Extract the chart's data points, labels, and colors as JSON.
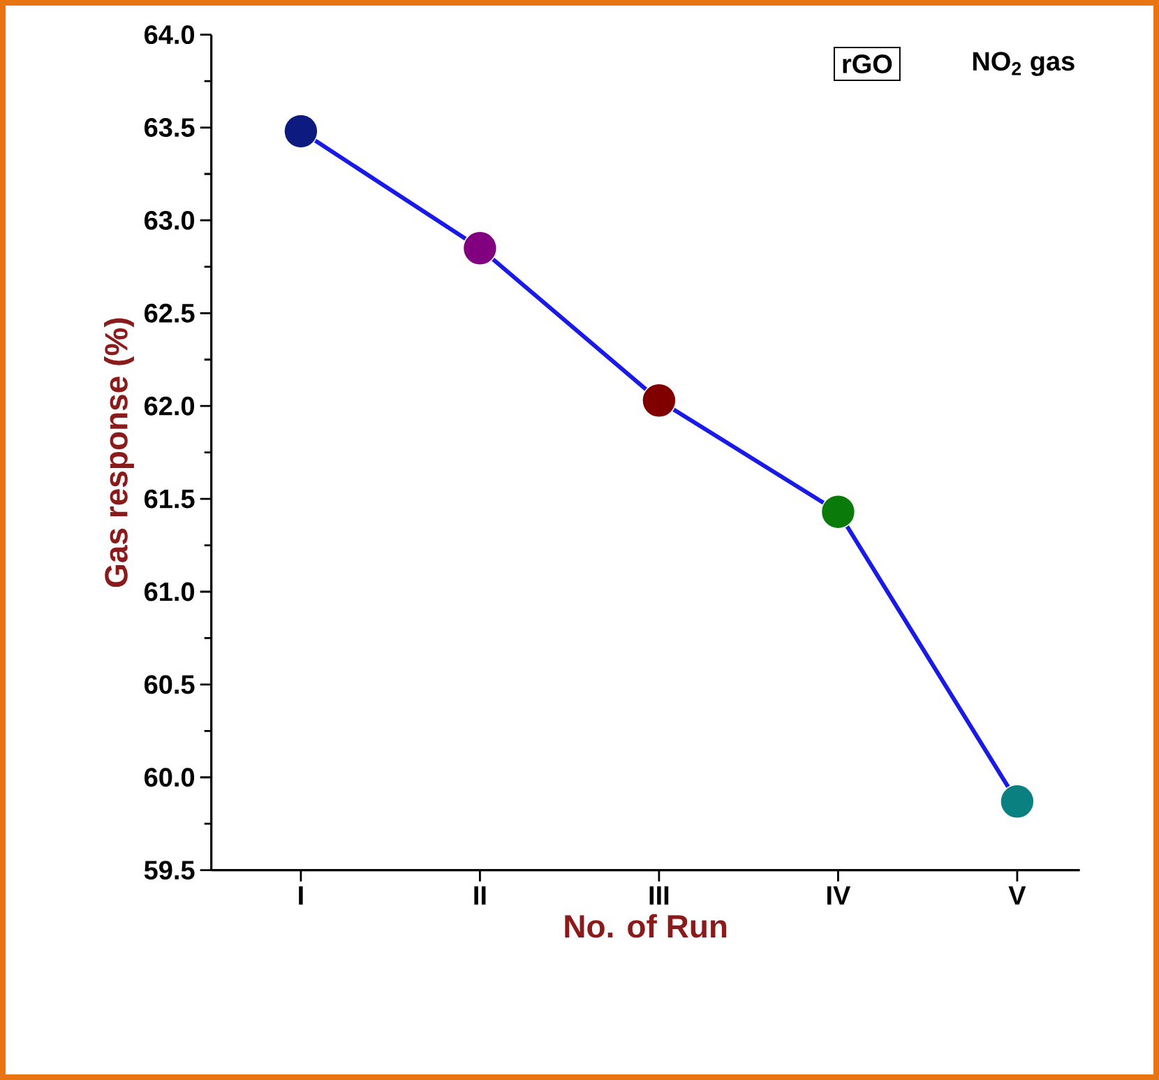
{
  "chart_data": {
    "type": "line",
    "xlabel": "No. of Run",
    "ylabel": "Gas response (%)",
    "categories": [
      "I",
      "II",
      "III",
      "IV",
      "V"
    ],
    "values": [
      63.48,
      62.85,
      62.03,
      61.43,
      59.87
    ],
    "color": "#1a1ae6",
    "colors": [
      "#0d1a80",
      "#800080",
      "#800000",
      "#0a7a0a",
      "#0a8080"
    ],
    "marker": "circle",
    "ylim": [
      59.5,
      64.0
    ],
    "yticks": [
      {
        "value": 59.5,
        "label": "59.5"
      },
      {
        "value": 60.0,
        "label": "60.0"
      },
      {
        "value": 60.5,
        "label": "60.5"
      },
      {
        "value": 61.0,
        "label": "61.0"
      },
      {
        "value": 61.5,
        "label": "61.5"
      },
      {
        "value": 62.0,
        "label": "62.0"
      },
      {
        "value": 62.5,
        "label": "62.5"
      },
      {
        "value": 63.0,
        "label": "63.0"
      },
      {
        "value": 63.5,
        "label": "63.5"
      },
      {
        "value": 64.0,
        "label": "64.0"
      }
    ],
    "annotations": [
      "rGO",
      "NO$_{2}$ gas"
    ]
  }
}
